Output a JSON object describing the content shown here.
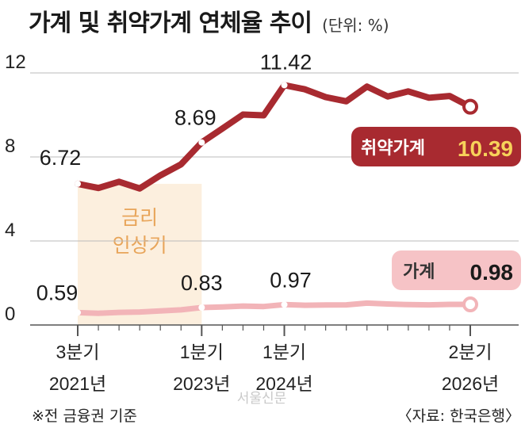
{
  "title": "가계 및 취약가계 연체율 추이",
  "unit": "(단위: %)",
  "chart_data": {
    "type": "line",
    "title": "가계 및 취약가계 연체율 추이",
    "unit": "(단위: %)",
    "ylim": [
      0,
      12
    ],
    "yticks": [
      "0",
      "4",
      "8",
      "12"
    ],
    "x_count": 20,
    "x_tick_labels": [
      {
        "idx": 0,
        "line1": "3분기",
        "line2": "2021년"
      },
      {
        "idx": 6,
        "line1": "1분기",
        "line2": "2023년"
      },
      {
        "idx": 10,
        "line1": "1분기",
        "line2": "2024년"
      },
      {
        "idx": 19,
        "line1": "2분기",
        "line2": "2026년"
      }
    ],
    "shaded_band": {
      "from_idx": 0,
      "to_idx": 6,
      "line1": "금리",
      "line2": "인상기"
    },
    "series": [
      {
        "name": "취약가계",
        "color": "#a82a30",
        "values": [
          6.72,
          6.52,
          6.82,
          6.5,
          7.12,
          7.65,
          8.69,
          9.35,
          10.02,
          9.98,
          11.42,
          11.22,
          10.85,
          10.65,
          11.35,
          10.88,
          11.12,
          10.82,
          10.9,
          10.39
        ],
        "labeled": [
          {
            "idx": 0,
            "text": "6.72"
          },
          {
            "idx": 6,
            "text": "8.69"
          },
          {
            "idx": 10,
            "text": "11.42"
          }
        ],
        "end_badge": {
          "label": "취약가계",
          "value": "10.39"
        }
      },
      {
        "name": "가계",
        "color": "#f2b4b8",
        "values": [
          0.59,
          0.56,
          0.6,
          0.62,
          0.67,
          0.72,
          0.83,
          0.86,
          0.9,
          0.88,
          0.97,
          0.94,
          0.95,
          0.96,
          1.04,
          1.0,
          0.97,
          0.96,
          0.98,
          0.98
        ],
        "labeled": [
          {
            "idx": 0,
            "text": "0.59"
          },
          {
            "idx": 6,
            "text": "0.83"
          },
          {
            "idx": 10,
            "text": "0.97"
          }
        ],
        "end_badge": {
          "label": "가계",
          "value": "0.98"
        }
      }
    ]
  },
  "footnote": "※전 금융권 기준",
  "source": "〈자료: 한국은행〉",
  "watermark": "서울신문"
}
